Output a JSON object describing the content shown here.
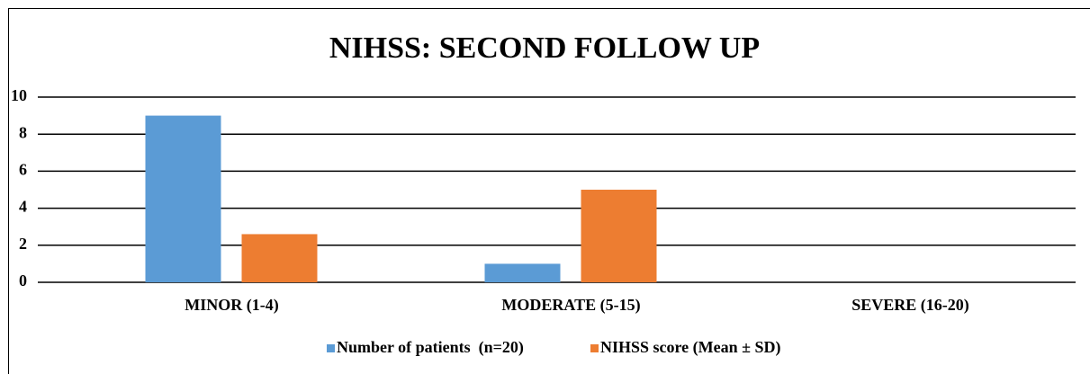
{
  "chart_data": {
    "type": "bar",
    "title": "NIHSS: SECOND FOLLOW UP",
    "categories": [
      "MINOR (1-4)",
      "MODERATE (5-15)",
      "SEVERE (16-20)"
    ],
    "series": [
      {
        "name": "Number of patients  (n=20)",
        "color": "#5b9bd5",
        "values": [
          9,
          1,
          0
        ]
      },
      {
        "name": "NIHSS score (Mean ± SD)",
        "color": "#ed7d31",
        "values": [
          2.6,
          5,
          0
        ]
      }
    ],
    "ylim": [
      0,
      10
    ],
    "yticks": [
      0,
      2,
      4,
      6,
      8,
      10
    ],
    "grid": true,
    "legend": "bottom"
  }
}
